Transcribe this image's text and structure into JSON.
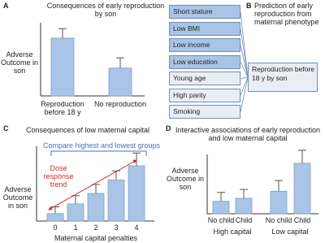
{
  "chart_data": [
    {
      "type": "bar",
      "panel": "A",
      "title": "Consequences of early reproduction by son",
      "ylabel": "Adverse Outcome in son",
      "categories": [
        "Reproduction before 18 y",
        "No reproduction"
      ],
      "values": [
        79,
        38
      ],
      "errors": [
        13,
        14
      ],
      "color": "#a9c4e6",
      "ylim": [
        0,
        100
      ]
    },
    {
      "type": "bar",
      "panel": "C",
      "title": "Consequences of low maternal capital",
      "ylabel": "Adverse Outcome in son",
      "xlabel": "Maternal capital penalties",
      "categories": [
        "0",
        "1",
        "2",
        "3",
        "4"
      ],
      "values": [
        10,
        23,
        37,
        55,
        74
      ],
      "errors": [
        9,
        11,
        12,
        12,
        17
      ],
      "color": "#a9c4e6",
      "ylim": [
        0,
        100
      ],
      "annotations": [
        "Compare highest and lowest groups",
        "Dose response trend"
      ]
    },
    {
      "type": "bar",
      "panel": "D",
      "title": "Interactive associations of early reproduction and low maternal capital",
      "ylabel": "Adverse Outcome in son",
      "categories": [
        "No child",
        "Child",
        "No child",
        "Child"
      ],
      "values": [
        21,
        26,
        38,
        85
      ],
      "errors": [
        15,
        15,
        18,
        22
      ],
      "color": "#a9c4e6",
      "ylim": [
        0,
        100
      ],
      "groups": [
        "High capital",
        "Low capital"
      ]
    }
  ],
  "diagram": {
    "panel": "B",
    "title": "Prediction of early reproduction from maternal phenotype",
    "predictors": [
      "Short stature",
      "Low BMI",
      "Low income",
      "Low education",
      "Young age",
      "High parity",
      "Smoking"
    ],
    "outcome": "Reproduction before 18 y by son"
  }
}
